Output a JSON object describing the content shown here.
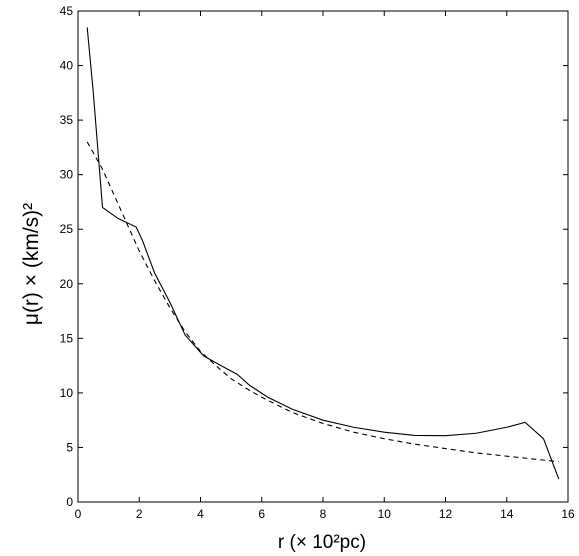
{
  "chart_data": {
    "type": "line",
    "title": "",
    "xlabel": "r (× 10²pc)",
    "ylabel": "μ(r) × (km/s)²",
    "xlim": [
      0,
      16
    ],
    "ylim": [
      0,
      45
    ],
    "xticks": [
      0,
      2,
      4,
      6,
      8,
      10,
      12,
      14,
      16
    ],
    "yticks": [
      0,
      5,
      10,
      15,
      20,
      25,
      30,
      35,
      40,
      45
    ],
    "grid": false,
    "legend": "none",
    "series": [
      {
        "style": "solid",
        "color": "#000000",
        "points": [
          [
            0.3,
            43.5
          ],
          [
            0.5,
            37.5
          ],
          [
            0.8,
            27.0
          ],
          [
            1.3,
            26.0
          ],
          [
            1.9,
            25.2
          ],
          [
            2.1,
            24.0
          ],
          [
            2.5,
            21.0
          ],
          [
            3.0,
            18.3
          ],
          [
            3.5,
            15.3
          ],
          [
            4.1,
            13.4
          ],
          [
            4.6,
            12.6
          ],
          [
            5.2,
            11.7
          ],
          [
            5.6,
            10.7
          ],
          [
            6.2,
            9.6
          ],
          [
            7.0,
            8.5
          ],
          [
            8.0,
            7.5
          ],
          [
            9.0,
            6.85
          ],
          [
            10.0,
            6.4
          ],
          [
            11.0,
            6.1
          ],
          [
            12.0,
            6.08
          ],
          [
            13.0,
            6.3
          ],
          [
            14.0,
            6.85
          ],
          [
            14.6,
            7.3
          ],
          [
            15.2,
            5.8
          ],
          [
            15.7,
            2.1
          ]
        ]
      },
      {
        "style": "dashed",
        "color": "#000000",
        "points": [
          [
            0.3,
            33.0
          ],
          [
            0.5,
            32.0
          ],
          [
            0.8,
            30.5
          ],
          [
            1.2,
            28.0
          ],
          [
            1.6,
            25.5
          ],
          [
            2.0,
            23.0
          ],
          [
            2.5,
            20.3
          ],
          [
            3.0,
            17.8
          ],
          [
            3.5,
            15.6
          ],
          [
            4.0,
            13.8
          ],
          [
            4.5,
            12.5
          ],
          [
            5.0,
            11.3
          ],
          [
            5.5,
            10.4
          ],
          [
            6.0,
            9.6
          ],
          [
            7.0,
            8.2
          ],
          [
            8.0,
            7.2
          ],
          [
            9.0,
            6.4
          ],
          [
            10.0,
            5.8
          ],
          [
            11.0,
            5.3
          ],
          [
            12.0,
            4.9
          ],
          [
            13.0,
            4.5
          ],
          [
            14.0,
            4.2
          ],
          [
            15.0,
            3.9
          ],
          [
            15.7,
            3.7
          ]
        ]
      }
    ]
  }
}
